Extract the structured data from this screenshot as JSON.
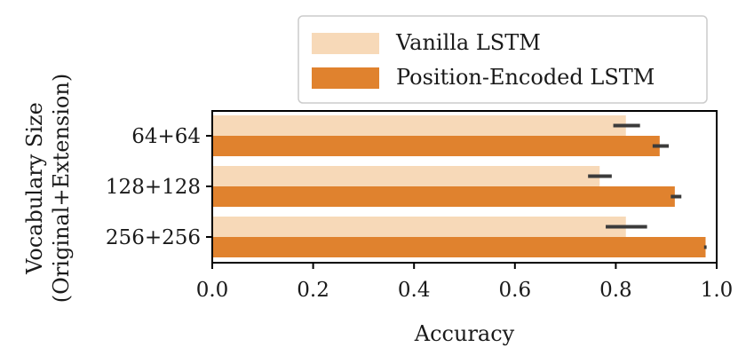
{
  "chart_data": {
    "type": "bar",
    "orientation": "horizontal",
    "categories": [
      "64+64",
      "128+128",
      "256+256"
    ],
    "series": [
      {
        "name": "Vanilla LSTM",
        "values": [
          0.82,
          0.768,
          0.82
        ],
        "error": [
          [
            0.795,
            0.848
          ],
          [
            0.745,
            0.792
          ],
          [
            0.78,
            0.862
          ]
        ],
        "color": "#f7d9b8"
      },
      {
        "name": "Position-Encoded LSTM",
        "values": [
          0.887,
          0.917,
          0.978
        ],
        "error": [
          [
            0.873,
            0.905
          ],
          [
            0.909,
            0.93
          ],
          [
            0.975,
            0.98
          ]
        ],
        "color": "#e0822e"
      }
    ],
    "xlabel": "Accuracy",
    "ylabel": [
      "Vocabulary Size",
      "(Original+Extension)"
    ],
    "xlim": [
      0.0,
      1.0
    ],
    "xticks": [
      "0.0",
      "0.2",
      "0.4",
      "0.6",
      "0.8",
      "1.0"
    ],
    "grid": false,
    "legend_position": "top-right",
    "error_bar_color": "#3b3b3b"
  }
}
